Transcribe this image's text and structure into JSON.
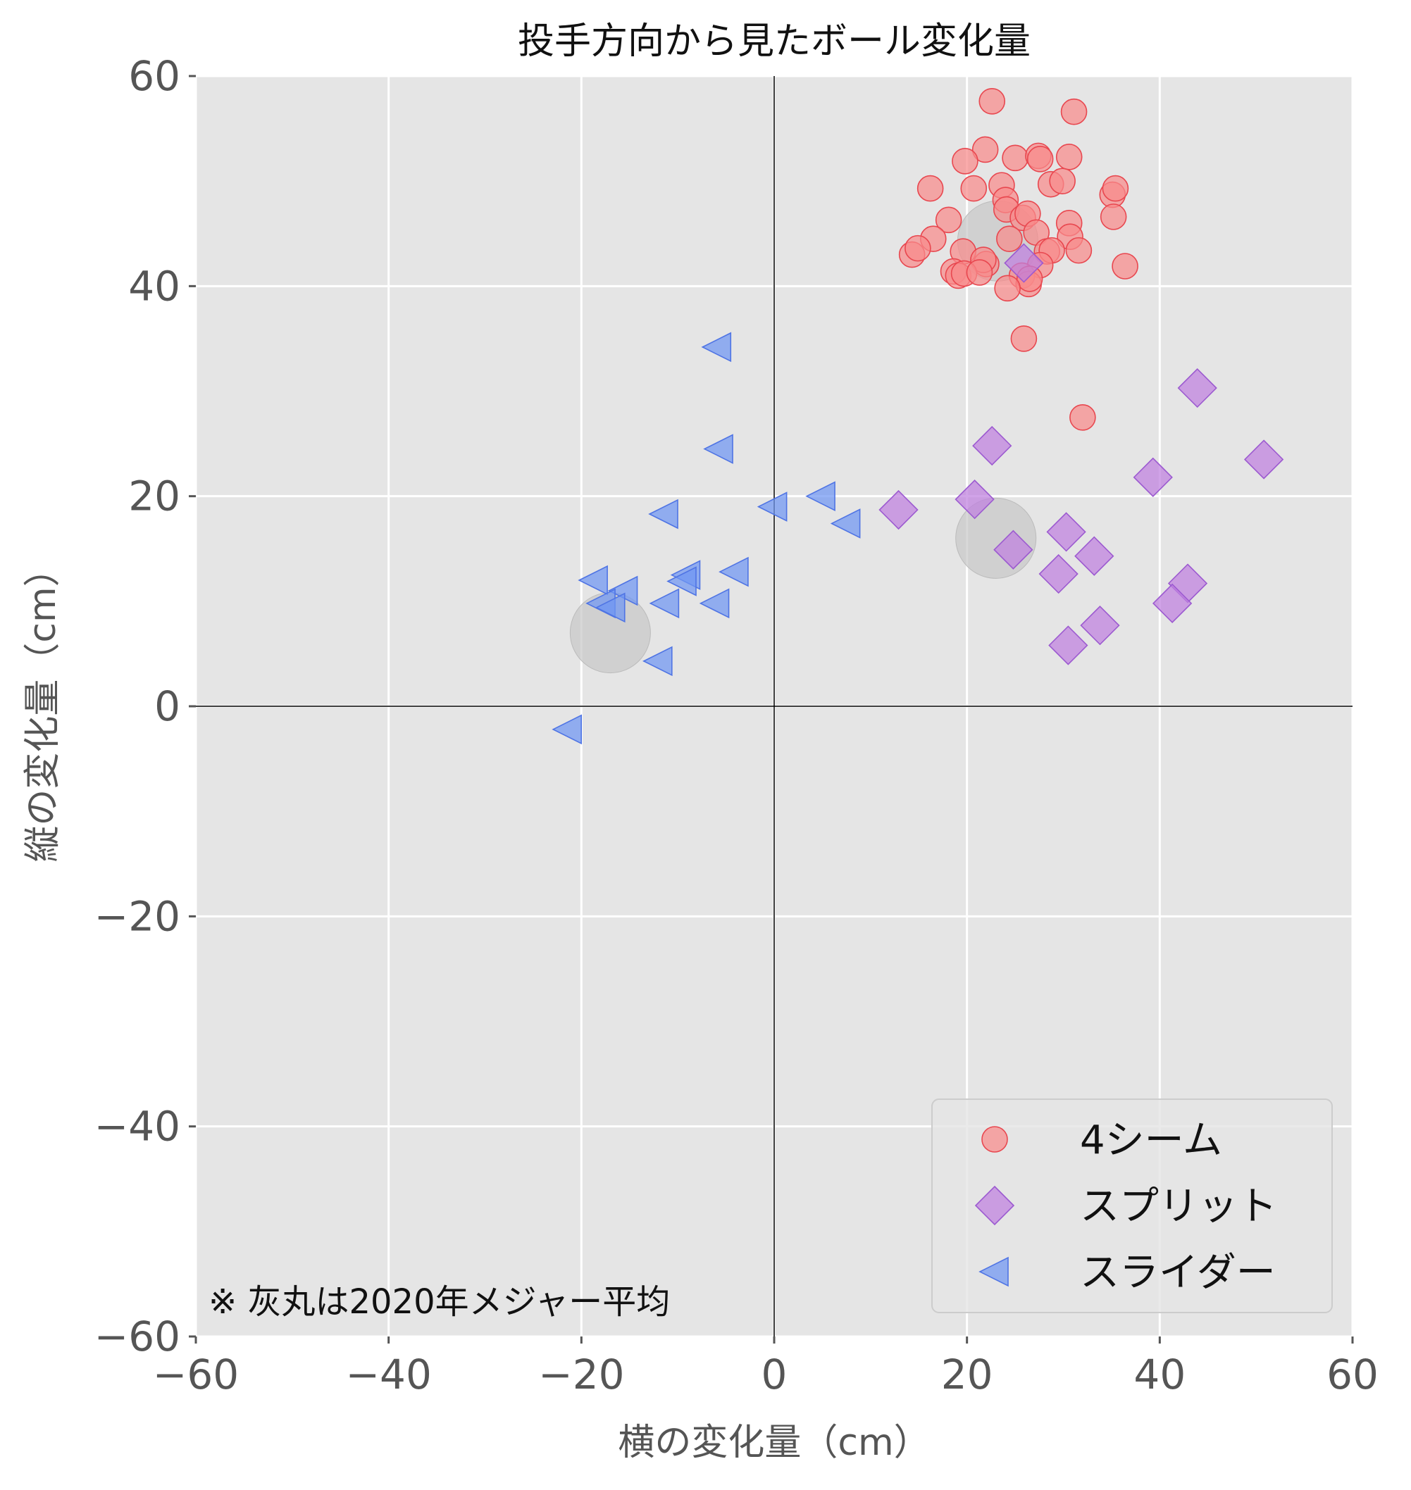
{
  "chart_data": {
    "type": "scatter",
    "title": "投手方向から見たボール変化量",
    "xlabel": "横の変化量（cm）",
    "ylabel": "縦の変化量（cm）",
    "xlim": [
      -60,
      60
    ],
    "ylim": [
      -60,
      60
    ],
    "xticks": [
      -60,
      -40,
      -20,
      0,
      20,
      40,
      60
    ],
    "yticks": [
      -60,
      -40,
      -20,
      0,
      20,
      40,
      60
    ],
    "xtick_labels": [
      "−60",
      "−40",
      "−20",
      "0",
      "20",
      "40",
      "60"
    ],
    "ytick_labels": [
      "−60",
      "−40",
      "−20",
      "0",
      "20",
      "40",
      "60"
    ],
    "grid": true,
    "legend_position": "lower-right",
    "annotation": "※ 灰丸は2020年メジャー平均",
    "series": [
      {
        "name": "4シーム",
        "marker": "circle",
        "color": "#f88b8b",
        "edge_color": "#e8474f",
        "points": [
          [
            22.6,
            57.6
          ],
          [
            31.1,
            56.6
          ],
          [
            21.9,
            53.0
          ],
          [
            19.8,
            51.9
          ],
          [
            25.0,
            52.2
          ],
          [
            27.4,
            52.4
          ],
          [
            27.6,
            52.1
          ],
          [
            30.6,
            52.3
          ],
          [
            16.2,
            49.3
          ],
          [
            20.7,
            49.3
          ],
          [
            23.6,
            49.6
          ],
          [
            28.7,
            49.7
          ],
          [
            29.9,
            50.0
          ],
          [
            35.1,
            48.7
          ],
          [
            35.4,
            49.3
          ],
          [
            24.0,
            48.2
          ],
          [
            24.1,
            47.3
          ],
          [
            25.8,
            46.5
          ],
          [
            26.3,
            46.9
          ],
          [
            18.1,
            46.3
          ],
          [
            30.6,
            46.0
          ],
          [
            35.2,
            46.6
          ],
          [
            16.5,
            44.5
          ],
          [
            24.4,
            44.5
          ],
          [
            27.2,
            45.1
          ],
          [
            30.7,
            44.7
          ],
          [
            14.3,
            43.0
          ],
          [
            14.9,
            43.6
          ],
          [
            19.6,
            43.3
          ],
          [
            22.0,
            42.1
          ],
          [
            21.7,
            42.5
          ],
          [
            28.3,
            43.3
          ],
          [
            28.8,
            43.4
          ],
          [
            31.6,
            43.4
          ],
          [
            27.6,
            42.0
          ],
          [
            36.4,
            41.9
          ],
          [
            18.6,
            41.4
          ],
          [
            19.1,
            41.0
          ],
          [
            19.7,
            41.2
          ],
          [
            21.3,
            41.3
          ],
          [
            25.7,
            41.0
          ],
          [
            26.4,
            40.2
          ],
          [
            26.5,
            40.7
          ],
          [
            24.2,
            39.8
          ],
          [
            25.9,
            35.0
          ],
          [
            32.0,
            27.5
          ]
        ]
      },
      {
        "name": "スプリット",
        "marker": "diamond",
        "color": "#bf7fdf",
        "edge_color": "#9c5ad0",
        "points": [
          [
            43.9,
            30.3
          ],
          [
            22.6,
            24.8
          ],
          [
            50.8,
            23.5
          ],
          [
            39.3,
            21.8
          ],
          [
            20.8,
            19.7
          ],
          [
            12.9,
            18.7
          ],
          [
            30.3,
            16.6
          ],
          [
            24.8,
            14.9
          ],
          [
            33.2,
            14.3
          ],
          [
            29.5,
            12.6
          ],
          [
            42.9,
            11.7
          ],
          [
            41.3,
            9.8
          ],
          [
            33.8,
            7.7
          ],
          [
            30.5,
            5.8
          ],
          [
            25.9,
            42.2
          ]
        ]
      },
      {
        "name": "スライダー",
        "marker": "triangle-left",
        "color": "#6f95f3",
        "edge_color": "#4f74e4",
        "points": [
          [
            -5.9,
            34.2
          ],
          [
            -5.7,
            24.5
          ],
          [
            -11.4,
            18.3
          ],
          [
            -0.1,
            19.0
          ],
          [
            4.9,
            20.0
          ],
          [
            7.5,
            17.4
          ],
          [
            -9.1,
            12.5
          ],
          [
            -9.5,
            11.9
          ],
          [
            -18.7,
            12.0
          ],
          [
            -15.6,
            11.0
          ],
          [
            -17.9,
            9.8
          ],
          [
            -16.9,
            9.4
          ],
          [
            -11.3,
            9.8
          ],
          [
            -6.1,
            9.8
          ],
          [
            -4.1,
            12.8
          ],
          [
            -12.0,
            4.3
          ],
          [
            -21.4,
            -2.2
          ]
        ]
      }
    ],
    "average_markers": [
      {
        "x": 23.2,
        "y": 44.3
      },
      {
        "x": 23.0,
        "y": 16.0
      },
      {
        "x": -17.0,
        "y": 7.0
      }
    ]
  }
}
